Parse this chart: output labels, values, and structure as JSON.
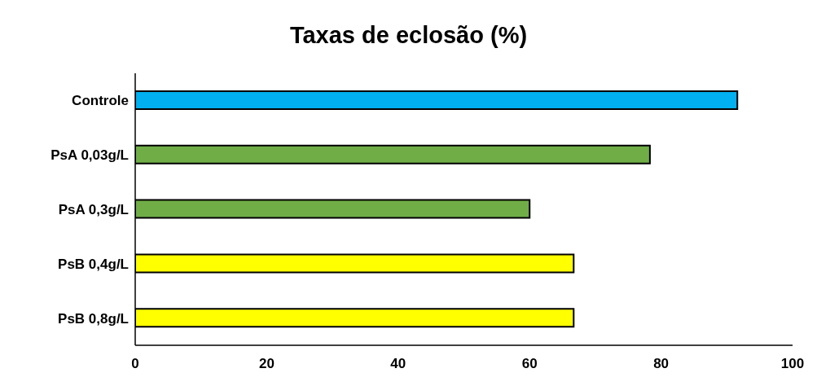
{
  "chart_data": {
    "type": "bar",
    "orientation": "horizontal",
    "title": "Taxas de eclosão (%)",
    "categories": [
      "Controle",
      "PsA 0,03g/L",
      "PsA 0,3g/L",
      "PsB 0,4g/L",
      "PsB 0,8g/L"
    ],
    "values": [
      91.6,
      78.3,
      60.0,
      66.7,
      66.7
    ],
    "colors": [
      "#00b0f0",
      "#70ad47",
      "#70ad47",
      "#ffff00",
      "#ffff00"
    ],
    "xlim": [
      0,
      100
    ],
    "xticks": [
      0,
      20,
      40,
      60,
      80,
      100
    ],
    "grid": false
  }
}
